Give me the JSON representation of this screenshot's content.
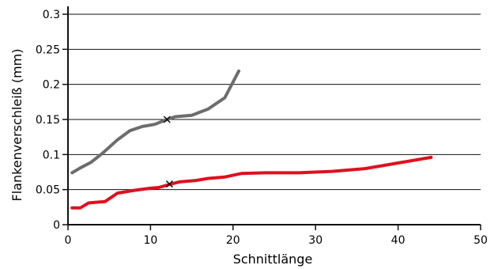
{
  "chart_data": {
    "type": "line",
    "title": "",
    "xlabel": "Schnittlänge",
    "ylabel": "Flankenverschleiß (mm)",
    "xlim": [
      0,
      50
    ],
    "ylim": [
      0,
      0.3
    ],
    "xticks": [
      0,
      10,
      20,
      30,
      40,
      50
    ],
    "xtick_labels": [
      "0",
      "10",
      "20",
      "30",
      "40",
      "50"
    ],
    "yticks": [
      0,
      0.05,
      0.1,
      0.15,
      0.2,
      0.25,
      0.3
    ],
    "ytick_labels": [
      "0",
      "0.05",
      "0.1",
      "0.15",
      "0.2",
      "0.25",
      "0.3"
    ],
    "grid": "horizontal",
    "legend": "none",
    "series": [
      {
        "color": "#6d6d6d",
        "points": [
          [
            0.5,
            0.074
          ],
          [
            1.5,
            0.081
          ],
          [
            2.8,
            0.089
          ],
          [
            4.2,
            0.102
          ],
          [
            6.0,
            0.121
          ],
          [
            7.5,
            0.134
          ],
          [
            9.0,
            0.14
          ],
          [
            10.5,
            0.143
          ],
          [
            12.0,
            0.15
          ],
          [
            13.0,
            0.154
          ],
          [
            15.0,
            0.156
          ],
          [
            17.0,
            0.165
          ],
          [
            19.0,
            0.181
          ],
          [
            20.7,
            0.219
          ]
        ],
        "marker": [
          12.0,
          0.15
        ]
      },
      {
        "color": "#e0101e",
        "points": [
          [
            0.5,
            0.024
          ],
          [
            1.5,
            0.024
          ],
          [
            2.5,
            0.031
          ],
          [
            4.5,
            0.033
          ],
          [
            6.0,
            0.045
          ],
          [
            8.0,
            0.049
          ],
          [
            10.0,
            0.052
          ],
          [
            11.0,
            0.053
          ],
          [
            12.5,
            0.058
          ],
          [
            13.5,
            0.061
          ],
          [
            15.5,
            0.063
          ],
          [
            17.0,
            0.066
          ],
          [
            19.0,
            0.068
          ],
          [
            21.0,
            0.073
          ],
          [
            24.0,
            0.074
          ],
          [
            28.0,
            0.074
          ],
          [
            32.0,
            0.076
          ],
          [
            36.0,
            0.08
          ],
          [
            40.0,
            0.088
          ],
          [
            44.0,
            0.096
          ]
        ],
        "marker": [
          12.3,
          0.058
        ]
      }
    ]
  }
}
